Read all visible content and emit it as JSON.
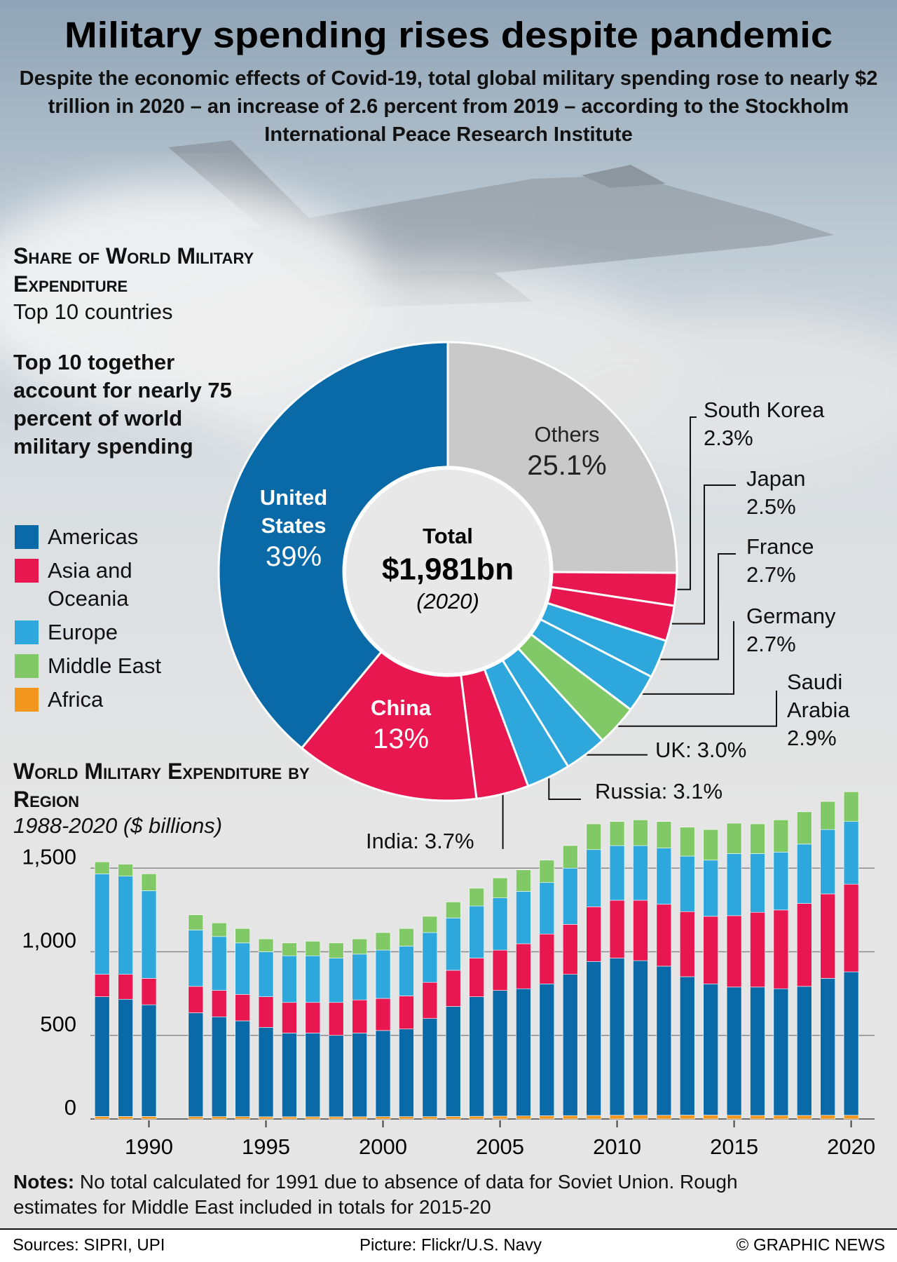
{
  "title": "Military spending rises despite pandemic",
  "subtitle": "Despite the economic effects of Covid-19, total global military spending rose to nearly $2 trillion in 2020 – an increase of 2.6 percent from 2019 – according to the Stockholm International Peace Research Institute",
  "chart_data": [
    {
      "type": "pie",
      "donut": true,
      "title": "Share of World Military Expenditure",
      "subtitle": "Top 10 countries",
      "annotation": "Top 10 together account for nearly 75 percent of world military spending",
      "categories": [
        "Others",
        "South Korea",
        "Japan",
        "France",
        "Germany",
        "Saudi Arabia",
        "UK:",
        "Russia:",
        "India:",
        "China",
        "United States"
      ],
      "values": [
        25.1,
        2.3,
        2.5,
        2.7,
        2.7,
        2.9,
        3.0,
        3.1,
        3.7,
        13,
        39
      ],
      "value_labels": [
        "25.1%",
        "2.3%",
        "2.5%",
        "2.7%",
        "2.7%",
        "2.9%",
        "3.0%",
        "3.1%",
        "3.7%",
        "13%",
        "39%"
      ],
      "colors": [
        "#c9c9c9",
        "#e8174f",
        "#e8174f",
        "#2ea8dc",
        "#2ea8dc",
        "#80c966",
        "#2ea8dc",
        "#2ea8dc",
        "#e8174f",
        "#e8174f",
        "#0a6aa8"
      ],
      "center_text": [
        "Total",
        "$1,981bn",
        "(2020)"
      ],
      "legend": [
        {
          "name": "Americas",
          "color": "#0a6aa8"
        },
        {
          "name": "Asia and Oceania",
          "color": "#e8174f"
        },
        {
          "name": "Europe",
          "color": "#2ea8dc"
        },
        {
          "name": "Middle East",
          "color": "#80c966"
        },
        {
          "name": "Africa",
          "color": "#f3961d"
        }
      ]
    },
    {
      "type": "bar",
      "stacked": true,
      "title": "World Military Expenditure by Region",
      "subtitle": "1988-2020 ($ billions)",
      "x": [
        1988,
        1989,
        1990,
        1991,
        1992,
        1993,
        1994,
        1995,
        1996,
        1997,
        1998,
        1999,
        2000,
        2001,
        2002,
        2003,
        2004,
        2005,
        2006,
        2007,
        2008,
        2009,
        2010,
        2011,
        2012,
        2013,
        2014,
        2015,
        2016,
        2017,
        2018,
        2019,
        2020
      ],
      "xlim": [
        1987.5,
        2021
      ],
      "xticks": [
        1990,
        1995,
        2000,
        2005,
        2010,
        2015,
        2020
      ],
      "ylim": [
        0,
        2000
      ],
      "yticks": [
        0,
        500,
        {
          "value": 1000,
          "label": "1,000"
        },
        {
          "value": 1500,
          "label": "1,500"
        }
      ],
      "grid": true,
      "series": [
        {
          "name": "Africa",
          "color": "#f3961d",
          "values": [
            15,
            15,
            15,
            null,
            14,
            14,
            14,
            13,
            13,
            13,
            13,
            13,
            14,
            14,
            14,
            15,
            16,
            17,
            18,
            19,
            20,
            21,
            22,
            22,
            22,
            23,
            23,
            22,
            21,
            21,
            21,
            22,
            22
          ]
        },
        {
          "name": "Americas",
          "color": "#0a6aa8",
          "values": [
            716,
            701,
            668,
            null,
            621,
            597,
            573,
            535,
            501,
            501,
            487,
            501,
            515,
            524,
            587,
            658,
            715,
            752,
            761,
            789,
            845,
            921,
            940,
            925,
            892,
            828,
            785,
            767,
            768,
            758,
            772,
            819,
            858
          ]
        },
        {
          "name": "Asia and Oceania",
          "color": "#e8174f",
          "values": [
            134,
            149,
            158,
            null,
            158,
            158,
            158,
            183,
            183,
            183,
            197,
            198,
            192,
            198,
            216,
            216,
            231,
            241,
            269,
            298,
            299,
            327,
            346,
            361,
            370,
            389,
            404,
            427,
            447,
            471,
            496,
            505,
            524
          ]
        },
        {
          "name": "Europe",
          "color": "#2ea8dc",
          "values": [
            601,
            587,
            524,
            null,
            337,
            322,
            308,
            269,
            279,
            279,
            265,
            274,
            289,
            298,
            298,
            313,
            312,
            312,
            313,
            308,
            336,
            342,
            327,
            327,
            336,
            332,
            336,
            371,
            351,
            346,
            355,
            385,
            375
          ]
        },
        {
          "name": "Middle East",
          "color": "#80c966",
          "values": [
            72,
            72,
            101,
            null,
            91,
            82,
            86,
            77,
            77,
            87,
            91,
            91,
            105,
            105,
            97,
            96,
            106,
            120,
            129,
            134,
            135,
            154,
            144,
            154,
            159,
            173,
            183,
            182,
            178,
            193,
            193,
            168,
            178
          ]
        }
      ]
    }
  ],
  "notes_label": "Notes:",
  "notes": "No total calculated for 1991 due to absence of data for Soviet Union. Rough estimates for Middle East included in totals for 2015-20",
  "footer": {
    "sources": "Sources: SIPRI, UPI",
    "picture": "Picture: Flickr/U.S. Navy",
    "credit": "© GRAPHIC NEWS"
  }
}
